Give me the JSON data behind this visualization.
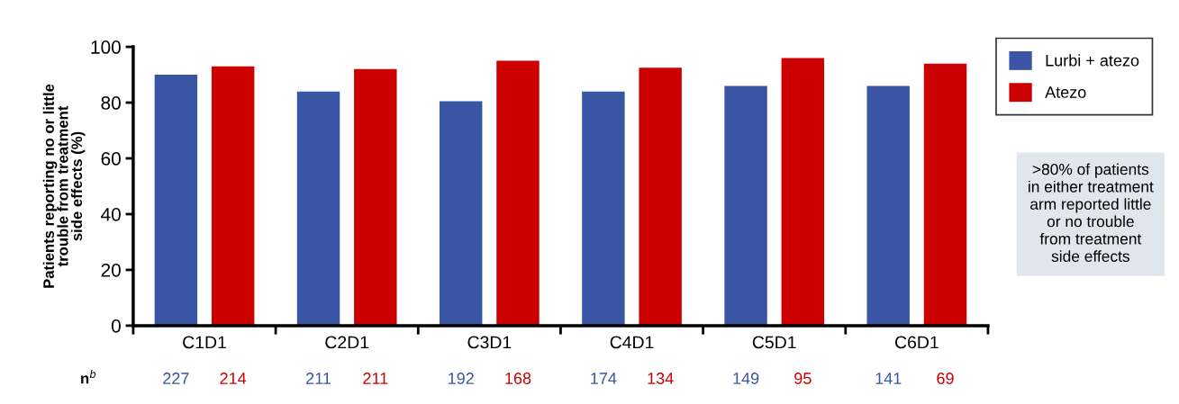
{
  "chart_data": {
    "type": "bar",
    "ylabel": "Patients reporting no or little\ntrouble from treatment\nside effects (%)",
    "categories": [
      "C1D1",
      "C2D1",
      "C3D1",
      "C4D1",
      "C5D1",
      "C6D1"
    ],
    "series": [
      {
        "name": "Lurbi + atezo",
        "color": "#3a55a4",
        "values": [
          90,
          84,
          80.5,
          84,
          86,
          86
        ]
      },
      {
        "name": "Atezo",
        "color": "#cc0000",
        "values": [
          93,
          92,
          95,
          92.5,
          96,
          94
        ]
      }
    ],
    "ylim": [
      0,
      100
    ],
    "yticks": [
      0,
      20,
      40,
      60,
      80,
      100
    ],
    "grid": false,
    "legend": "top right",
    "annotations": [
      "n$^{b}$",
      "227",
      "214",
      "211",
      "211",
      "192",
      "168",
      "174",
      "134",
      "149",
      "95",
      "141",
      "69",
      ">80% of patients\nin either treatment\narm reported little\nor no trouble\nfrom treatment\nside effects"
    ]
  }
}
